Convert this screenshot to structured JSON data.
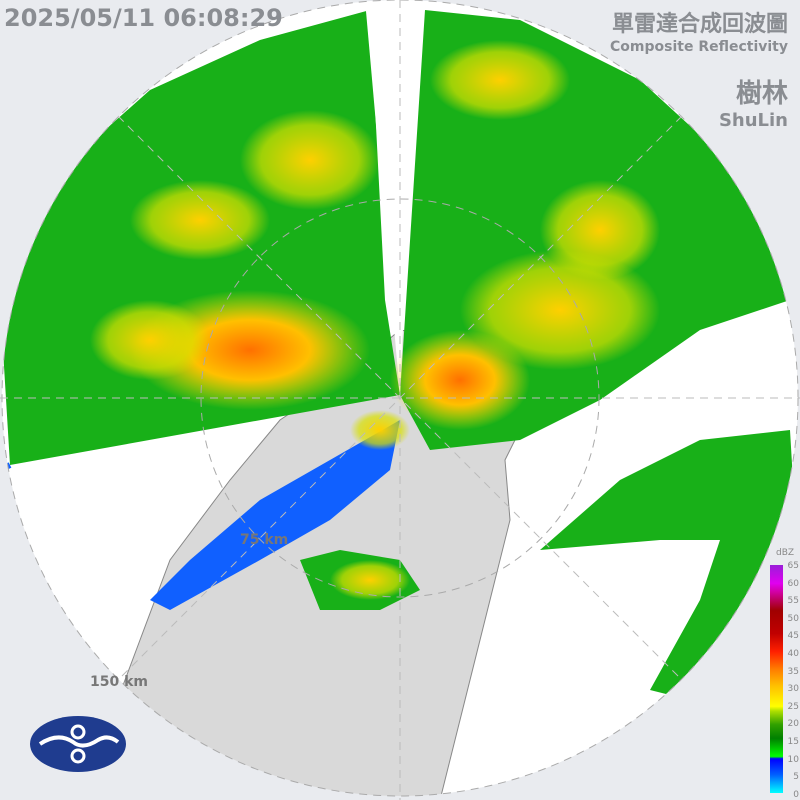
{
  "timestamp": "2025/05/11 06:08:29",
  "product": {
    "title_zh": "單雷達合成回波圖",
    "title_en": "Composite Reflectivity"
  },
  "station": {
    "name_zh": "樹林",
    "name_en": "ShuLin"
  },
  "range_rings": [
    "75 km",
    "150 km"
  ],
  "legend": {
    "unit": "dBZ",
    "ticks": [
      "65",
      "60",
      "55",
      "50",
      "45",
      "40",
      "35",
      "30",
      "25",
      "20",
      "15",
      "10",
      "5",
      "0"
    ]
  },
  "colors": {
    "background": "#e9ebef",
    "land": "#d9d9d9",
    "no_echo": "#ffffff",
    "weak": "#00b000",
    "moderate": "#ffd000",
    "strong": "#ff6000"
  },
  "logo": {
    "icon": "cwa-logo-icon"
  }
}
